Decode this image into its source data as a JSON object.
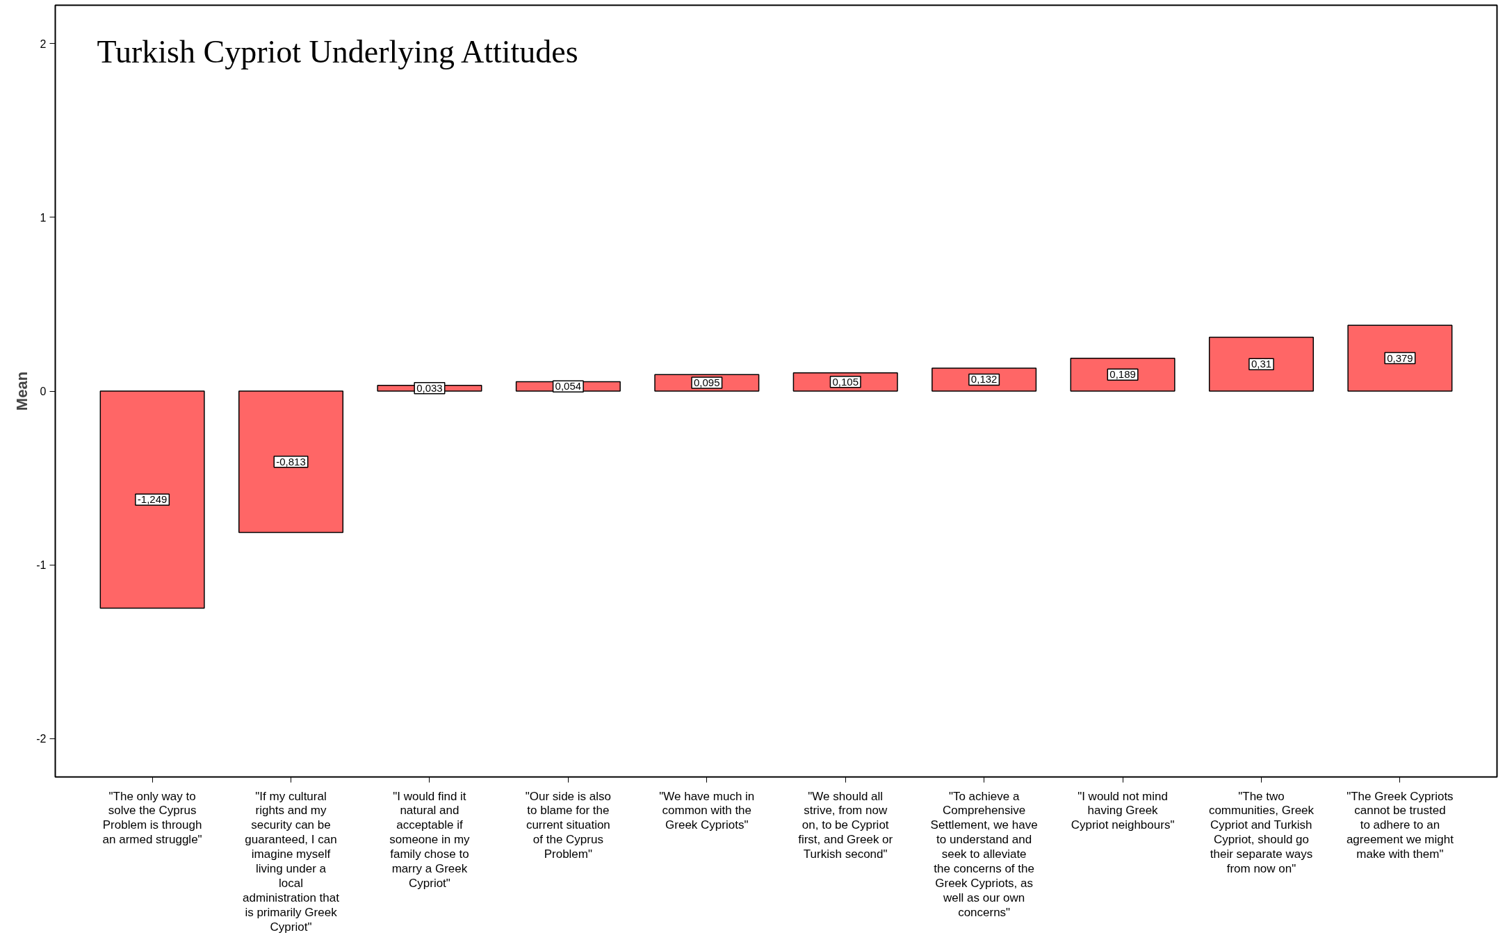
{
  "chart_data": {
    "type": "bar",
    "title": "Turkish Cypriot Underlying Attitudes",
    "ylabel": "Mean",
    "categories": [
      "\"The only way to solve the Cyprus Problem is through an armed struggle\"",
      "\"If my cultural rights and my security can be guaranteed, I can imagine myself living under a local administration that is primarily Greek Cypriot\"",
      "\"I would find it natural and acceptable if someone in my family chose to marry a Greek Cypriot\"",
      "\"Our side is also to blame for the current situation of the Cyprus Problem\"",
      "\"We have much in common with the Greek Cypriots\"",
      "\"We should all strive, from now on, to be Cypriot first, and Greek or Turkish second\"",
      "\"To achieve a Comprehensive Settlement, we have to understand and seek to alleviate the concerns of the Greek Cypriots, as well as our own concerns\"",
      "\"I would not mind having Greek Cypriot neighbours\"",
      "\"The two communities, Greek Cypriot and Turkish Cypriot, should go their separate ways from now on\"",
      "\"The Greek Cypriots cannot be trusted to adhere to an agreement we might make with them\""
    ],
    "values": [
      -1.249,
      -0.813,
      0.033,
      0.054,
      0.095,
      0.105,
      0.132,
      0.189,
      0.31,
      0.379
    ],
    "value_labels": [
      "-1,249",
      "-0,813",
      "0,033",
      "0,054",
      "0,095",
      "0,105",
      "0,132",
      "0,189",
      "0,31",
      "0,379"
    ],
    "color": "#ff6666",
    "ylim": [
      -2.22,
      2.22
    ],
    "yticks": [
      -2,
      -1,
      0,
      1,
      2
    ],
    "grid": false
  }
}
